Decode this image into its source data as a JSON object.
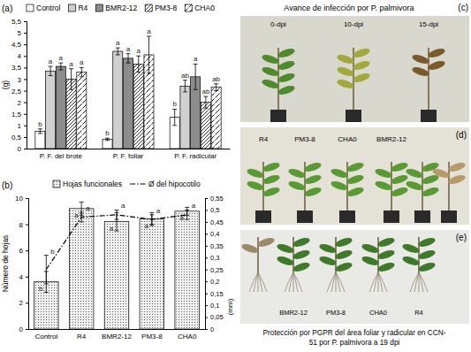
{
  "chart_data": [
    {
      "type": "bar",
      "title": "(a)",
      "y_label": "(g)",
      "categories": [
        "P. F. del brote",
        "P. F. foliar",
        "P. F. radicular"
      ],
      "series": [
        {
          "name": "Control",
          "color": "#ffffff",
          "values": [
            0.75,
            0.4,
            1.35
          ],
          "errors": [
            0.1,
            0.05,
            0.35
          ],
          "annotations": [
            "b",
            "b",
            "b"
          ]
        },
        {
          "name": "R4",
          "color": "#d0d0d0",
          "values": [
            3.35,
            4.2,
            2.7
          ],
          "errors": [
            0.2,
            0.15,
            0.25
          ],
          "annotations": [
            "a",
            "a",
            "ab"
          ]
        },
        {
          "name": "BMR2-12",
          "color": "#8c8c8c",
          "values": [
            3.55,
            3.9,
            3.1
          ],
          "errors": [
            0.15,
            0.2,
            0.55
          ],
          "annotations": [
            "a",
            "a",
            "a"
          ]
        },
        {
          "name": "PM3-8",
          "color": "#ffffff",
          "values": [
            3.0,
            3.65,
            2.0
          ],
          "errors": [
            0.45,
            0.35,
            0.25
          ],
          "annotations": [
            "a",
            "a",
            "ab"
          ]
        },
        {
          "name": "CHA0",
          "color": "#ffffff",
          "values": [
            3.3,
            4.05,
            2.65
          ],
          "errors": [
            0.2,
            0.8,
            0.15
          ],
          "annotations": [
            "a",
            "a",
            "ab"
          ]
        }
      ],
      "ylim": [
        0,
        5.5
      ],
      "yticks": [
        0,
        {
          "value": 0.5,
          "label": "0,5"
        },
        1,
        {
          "value": 1.5,
          "label": "1,5"
        },
        2,
        {
          "value": 2.5,
          "label": "2,5"
        },
        3,
        {
          "value": 3.5,
          "label": "3,5"
        },
        4,
        {
          "value": 4.5,
          "label": "4,5"
        },
        5,
        {
          "value": 5.5,
          "label": "5,5"
        }
      ],
      "grid": false,
      "legend": "top"
    },
    {
      "type": "bar",
      "title": "(b)",
      "y_label": "Número de hojas",
      "y2_label": "(mm)",
      "categories": [
        "Control",
        "R4",
        "BMR2-12",
        "PM3-8",
        "CHA0"
      ],
      "series": [
        {
          "name": "Hojas funcionales",
          "type": "bar",
          "color": "#f0f0f0",
          "values": [
            3.6,
            9.2,
            8.2,
            8.4,
            9.0
          ],
          "errors": [
            0.8,
            0.5,
            0.7,
            0.5,
            0.3
          ],
          "annotations": [
            "b",
            "a",
            "a",
            "a",
            "a"
          ]
        },
        {
          "name": "Ø del hipocotilo",
          "type": "line",
          "axis": "y2",
          "color": "#000000",
          "line_style": "dashdot",
          "values": [
            0.25,
            0.47,
            0.48,
            0.46,
            0.48
          ],
          "errors": [
            0.06,
            0.02,
            0.02,
            0.02,
            0.02
          ],
          "annotations": [
            "b",
            "a",
            "a",
            "a",
            "a"
          ]
        }
      ],
      "ylim": [
        0,
        10
      ],
      "yticks": [
        0,
        2,
        4,
        6,
        8,
        10
      ],
      "y2lim": [
        0,
        0.55
      ],
      "y2ticks": [
        0,
        {
          "value": 0.05,
          "label": "0,05"
        },
        {
          "value": 0.1,
          "label": "0,1"
        },
        {
          "value": 0.15,
          "label": "0,15"
        },
        {
          "value": 0.2,
          "label": "0,2"
        },
        {
          "value": 0.25,
          "label": "0,25"
        },
        {
          "value": 0.3,
          "label": "0,3"
        },
        {
          "value": 0.35,
          "label": "0,35"
        },
        {
          "value": 0.4,
          "label": "0,4"
        },
        {
          "value": 0.45,
          "label": "0,45"
        },
        {
          "value": 0.5,
          "label": "0,5"
        },
        {
          "value": 0.55,
          "label": "0,55"
        }
      ],
      "grid": false,
      "legend": "top"
    }
  ],
  "images": [
    {
      "label": "(c)",
      "title": "Avance de infección por P. palmivora",
      "texts": [
        "0-dpi",
        "10-dpi",
        "15-dpi"
      ]
    },
    {
      "label": "(d)",
      "texts": [
        "R4",
        "PM3-8",
        "CHA0",
        "BMR2-12"
      ]
    },
    {
      "label": "(e)",
      "texts": [
        "BMR2-12",
        "PM3-8",
        "CHA0",
        "R4"
      ],
      "caption": [
        "Protección por PGPR del área foliar y radicular en CCN-",
        "51 por P. palmivora a 19 dpi"
      ]
    }
  ]
}
